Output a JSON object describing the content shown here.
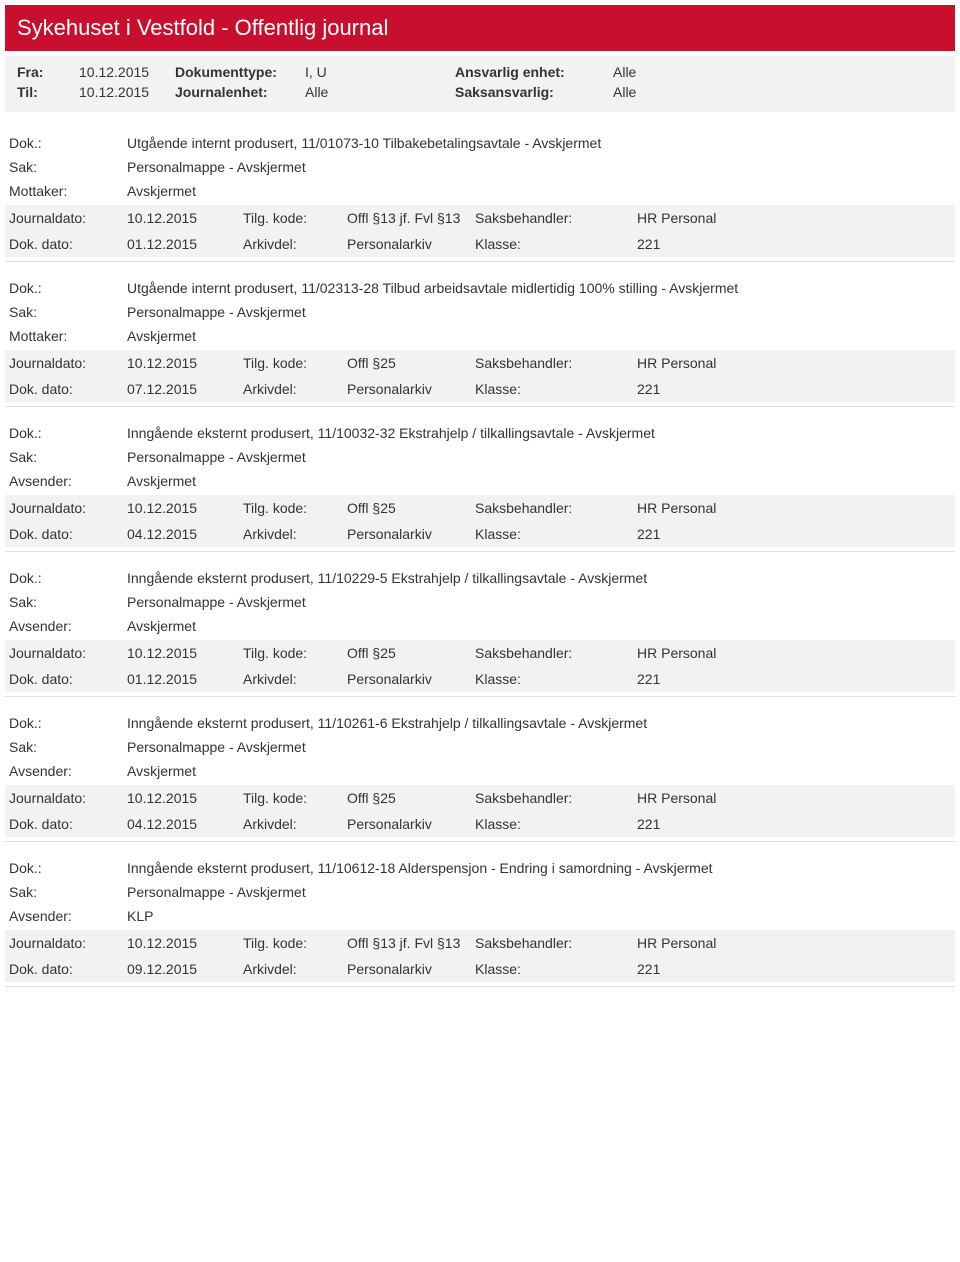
{
  "banner": {
    "title": "Sykehuset i Vestfold - Offentlig journal"
  },
  "meta": {
    "fra_label": "Fra:",
    "fra_value": "10.12.2015",
    "til_label": "Til:",
    "til_value": "10.12.2015",
    "doktype_label": "Dokumenttype:",
    "doktype_value": "I, U",
    "journalenhet_label": "Journalenhet:",
    "journalenhet_value": "Alle",
    "ansvarlig_label": "Ansvarlig enhet:",
    "ansvarlig_value": "Alle",
    "saksansvarlig_label": "Saksansvarlig:",
    "saksansvarlig_value": "Alle"
  },
  "labels": {
    "dok": "Dok.:",
    "sak": "Sak:",
    "mottaker": "Mottaker:",
    "avsender": "Avsender:",
    "journaldato": "Journaldato:",
    "dokdato": "Dok. dato:",
    "tilgkode": "Tilg. kode:",
    "arkivdel": "Arkivdel:",
    "saksbehandler": "Saksbehandler:",
    "klasse": "Klasse:"
  },
  "entries": [
    {
      "dok": "Utgående internt produsert, 11/01073-10 Tilbakebetalingsavtale - Avskjermet",
      "sak": "Personalmappe - Avskjermet",
      "party_label_key": "mottaker",
      "party": "Avskjermet",
      "journaldato": "10.12.2015",
      "tilgkode": "Offl §13 jf. Fvl §13",
      "saksbehandler": "HR Personal",
      "dokdato": "01.12.2015",
      "arkivdel": "Personalarkiv",
      "klasse": "221"
    },
    {
      "dok": "Utgående internt produsert, 11/02313-28 Tilbud arbeidsavtale midlertidig 100% stilling - Avskjermet",
      "sak": "Personalmappe - Avskjermet",
      "party_label_key": "mottaker",
      "party": "Avskjermet",
      "journaldato": "10.12.2015",
      "tilgkode": "Offl §25",
      "saksbehandler": "HR Personal",
      "dokdato": "07.12.2015",
      "arkivdel": "Personalarkiv",
      "klasse": "221"
    },
    {
      "dok": "Inngående eksternt produsert, 11/10032-32 Ekstrahjelp / tilkallingsavtale - Avskjermet",
      "sak": "Personalmappe - Avskjermet",
      "party_label_key": "avsender",
      "party": "Avskjermet",
      "journaldato": "10.12.2015",
      "tilgkode": "Offl §25",
      "saksbehandler": "HR Personal",
      "dokdato": "04.12.2015",
      "arkivdel": "Personalarkiv",
      "klasse": "221"
    },
    {
      "dok": "Inngående eksternt produsert, 11/10229-5 Ekstrahjelp / tilkallingsavtale - Avskjermet",
      "sak": "Personalmappe - Avskjermet",
      "party_label_key": "avsender",
      "party": "Avskjermet",
      "journaldato": "10.12.2015",
      "tilgkode": "Offl §25",
      "saksbehandler": "HR Personal",
      "dokdato": "01.12.2015",
      "arkivdel": "Personalarkiv",
      "klasse": "221"
    },
    {
      "dok": "Inngående eksternt produsert, 11/10261-6 Ekstrahjelp / tilkallingsavtale - Avskjermet",
      "sak": "Personalmappe - Avskjermet",
      "party_label_key": "avsender",
      "party": "Avskjermet",
      "journaldato": "10.12.2015",
      "tilgkode": "Offl §25",
      "saksbehandler": "HR Personal",
      "dokdato": "04.12.2015",
      "arkivdel": "Personalarkiv",
      "klasse": "221"
    },
    {
      "dok": "Inngående eksternt produsert, 11/10612-18 Alderspensjon - Endring i samordning - Avskjermet",
      "sak": "Personalmappe - Avskjermet",
      "party_label_key": "avsender",
      "party": "KLP",
      "journaldato": "10.12.2015",
      "tilgkode": "Offl §13 jf. Fvl §13",
      "saksbehandler": "HR Personal",
      "dokdato": "09.12.2015",
      "arkivdel": "Personalarkiv",
      "klasse": "221"
    }
  ]
}
